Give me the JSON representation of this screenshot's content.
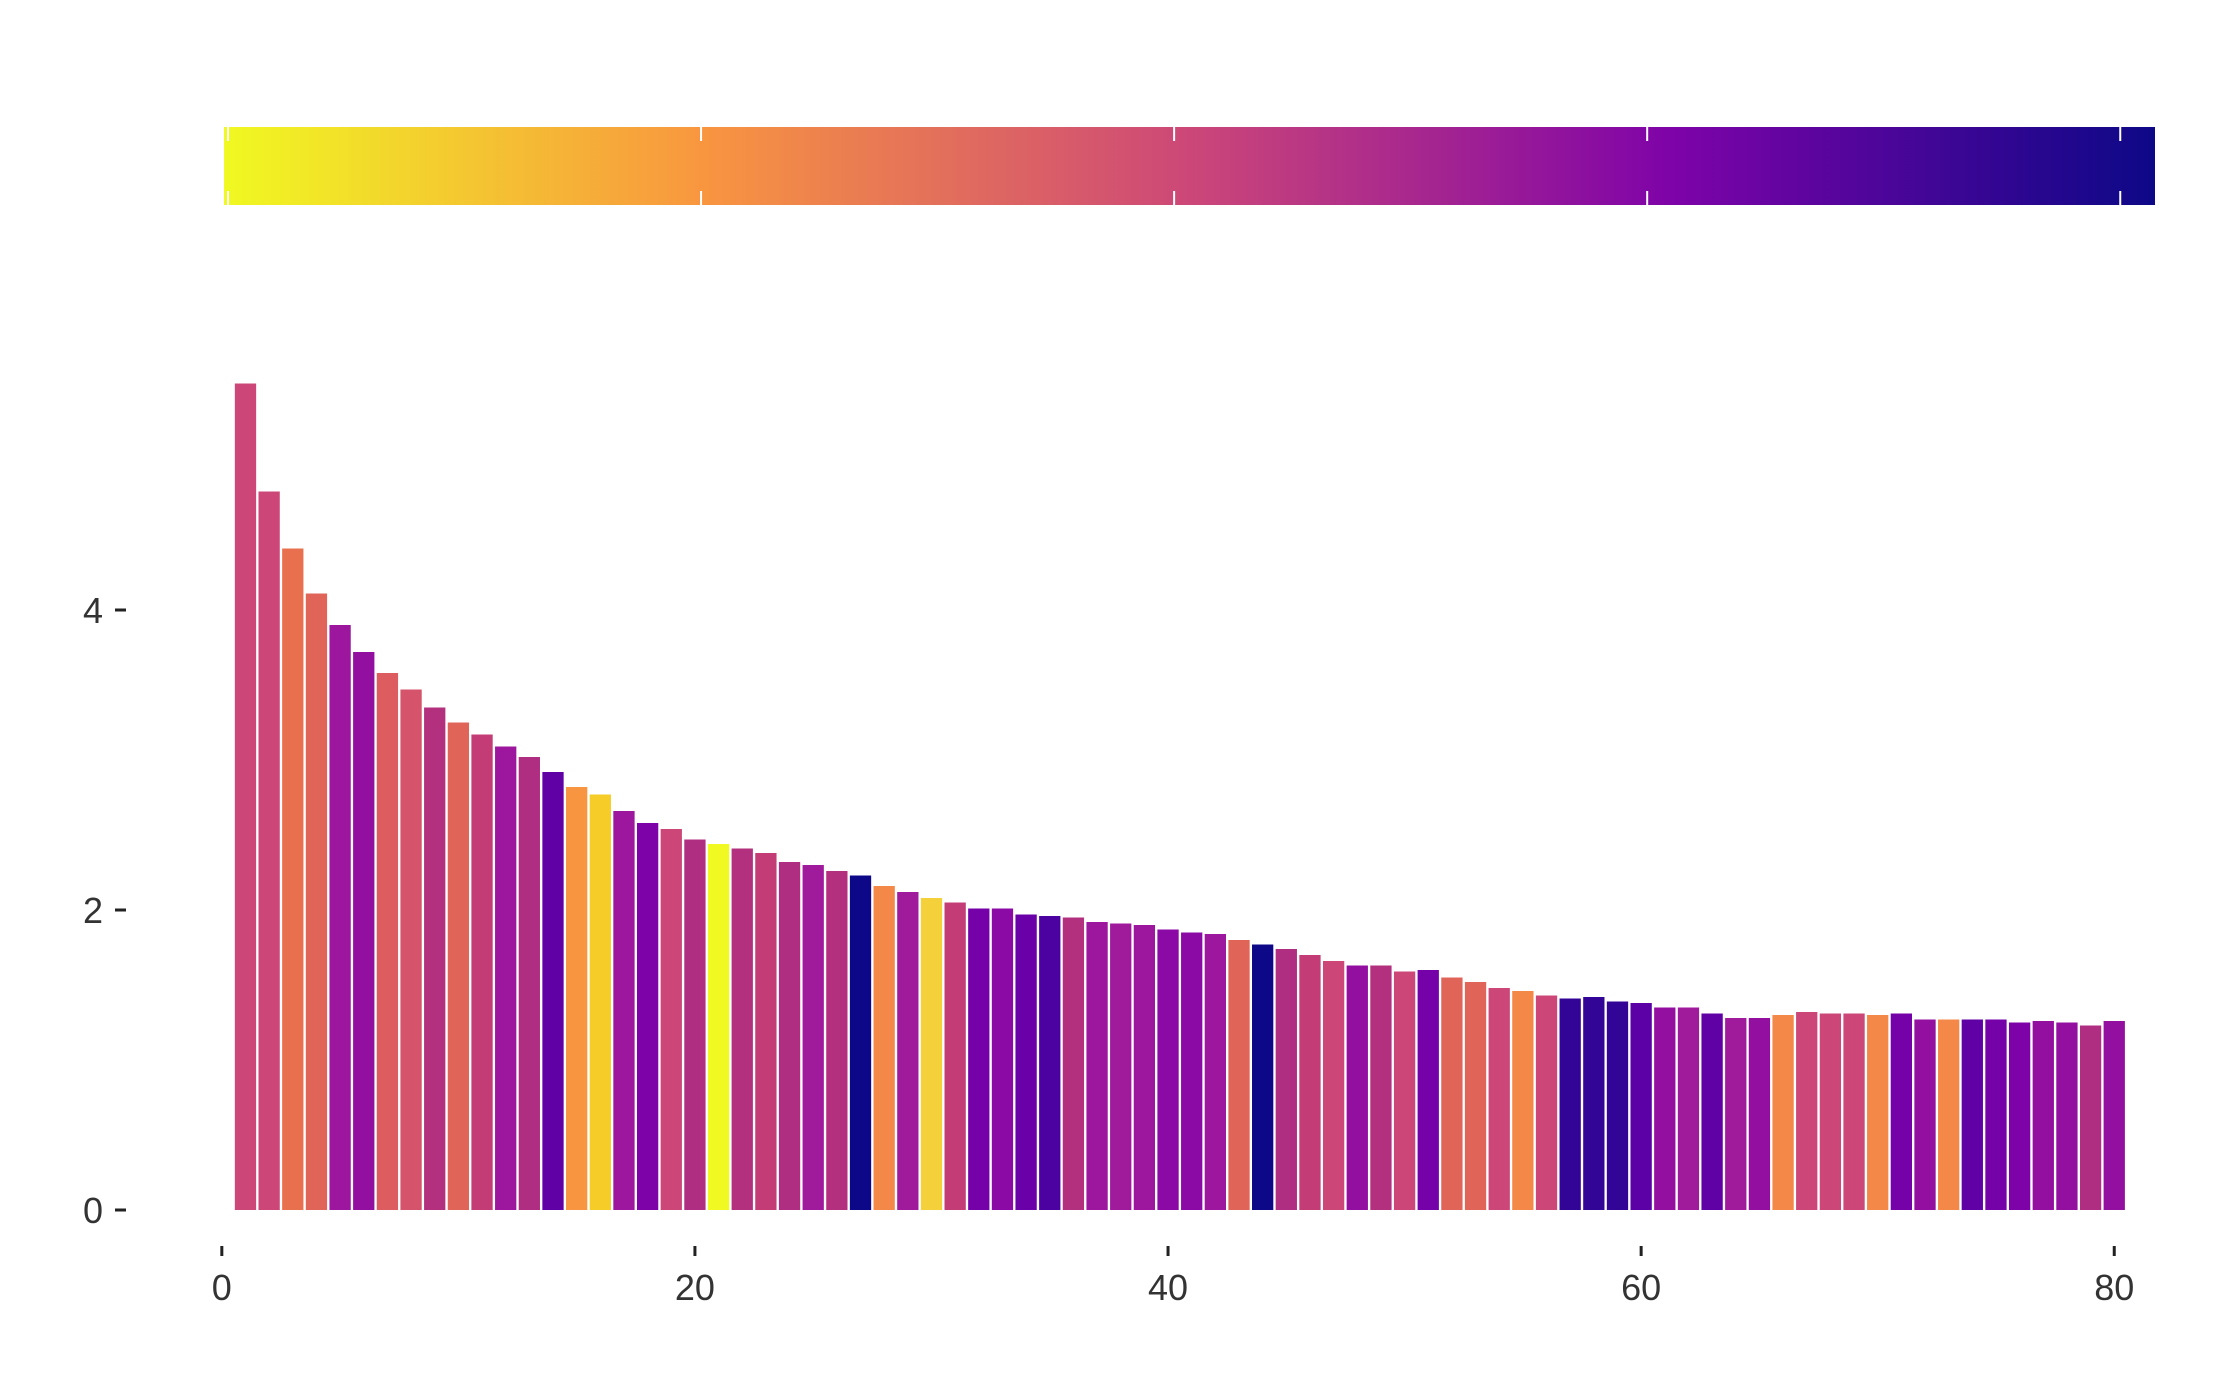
{
  "chart_data": {
    "type": "bar",
    "title": "",
    "xlabel": "",
    "ylabel": "",
    "xlim": [
      -0.5,
      81.3
    ],
    "ylim": [
      0,
      5.5
    ],
    "x_ticks": [
      0,
      20,
      40,
      60,
      80
    ],
    "y_ticks": [
      0,
      2,
      4
    ],
    "grid": false,
    "legend": "none",
    "colorbar": {
      "position": "top",
      "tick_values": [
        0,
        20,
        40,
        60,
        80
      ],
      "colors": [
        "#f0f921",
        "#f89540",
        "#cc4778",
        "#7e03a8",
        "#0d0887"
      ]
    },
    "series": [
      {
        "x": [
          1,
          2,
          3,
          4,
          5,
          6,
          7,
          8,
          9,
          10,
          11,
          12,
          13,
          14,
          15,
          16,
          17,
          18,
          19,
          20,
          21,
          22,
          23,
          24,
          25,
          26,
          27,
          28,
          29,
          30,
          31,
          32,
          33,
          34,
          35,
          36,
          37,
          38,
          39,
          40,
          41,
          42,
          43,
          44,
          45,
          46,
          47,
          48,
          49,
          50,
          51,
          52,
          53,
          54,
          55,
          56,
          57,
          58,
          59,
          60,
          61,
          62,
          63,
          64,
          65,
          66,
          67,
          68,
          69,
          70,
          71,
          72,
          73,
          74,
          75,
          76,
          77,
          78,
          79,
          80
        ],
        "values": [
          5.51,
          4.79,
          4.41,
          4.11,
          3.9,
          3.72,
          3.58,
          3.47,
          3.35,
          3.25,
          3.17,
          3.09,
          3.02,
          2.92,
          2.82,
          2.77,
          2.66,
          2.58,
          2.54,
          2.47,
          2.44,
          2.41,
          2.38,
          2.32,
          2.3,
          2.26,
          2.23,
          2.16,
          2.12,
          2.08,
          2.05,
          2.01,
          2.01,
          1.97,
          1.96,
          1.95,
          1.92,
          1.91,
          1.9,
          1.87,
          1.85,
          1.84,
          1.8,
          1.77,
          1.74,
          1.7,
          1.66,
          1.63,
          1.63,
          1.59,
          1.6,
          1.55,
          1.52,
          1.48,
          1.46,
          1.43,
          1.41,
          1.42,
          1.39,
          1.38,
          1.35,
          1.35,
          1.31,
          1.28,
          1.28,
          1.3,
          1.32,
          1.31,
          1.31,
          1.3,
          1.31,
          1.27,
          1.27,
          1.27,
          1.27,
          1.25,
          1.26,
          1.25,
          1.23,
          1.26
        ],
        "colors": [
          "#cc4778",
          "#cc4778",
          "#e8704e",
          "#e06558",
          "#9c179e",
          "#920f9f",
          "#dc5c5f",
          "#d5536b",
          "#b2307d",
          "#e06558",
          "#c43c75",
          "#9c179e",
          "#b02e82",
          "#6001a6",
          "#f89540",
          "#f6cc28",
          "#9c179e",
          "#7d03a8",
          "#cc4778",
          "#b02e82",
          "#f0f921",
          "#b2307d",
          "#c43c75",
          "#b02e82",
          "#a01a9c",
          "#b2307d",
          "#0d0887",
          "#f48848",
          "#a01a9c",
          "#f4d13a",
          "#c43c75",
          "#7402a8",
          "#8b0aa5",
          "#6a00a8",
          "#4c02a1",
          "#b2307d",
          "#9c179e",
          "#a01a9c",
          "#9c179e",
          "#8b0aa5",
          "#8b0aa5",
          "#9c179e",
          "#e06558",
          "#0d0887",
          "#b02e82",
          "#c43c75",
          "#cc4778",
          "#920f9f",
          "#b2307d",
          "#cc4778",
          "#7402a8",
          "#e06558",
          "#e06558",
          "#cc4778",
          "#f48848",
          "#cc4778",
          "#330597",
          "#330597",
          "#330597",
          "#5b01a5",
          "#920f9f",
          "#a01a9c",
          "#6001a6",
          "#a01a9c",
          "#920f9f",
          "#f48848",
          "#cc4778",
          "#cc4778",
          "#cc4778",
          "#f48848",
          "#7402a8",
          "#920f9f",
          "#f48848",
          "#6001a6",
          "#7402a8",
          "#7d03a8",
          "#920f9f",
          "#920f9f",
          "#b02e82",
          "#920f9f"
        ]
      }
    ]
  }
}
